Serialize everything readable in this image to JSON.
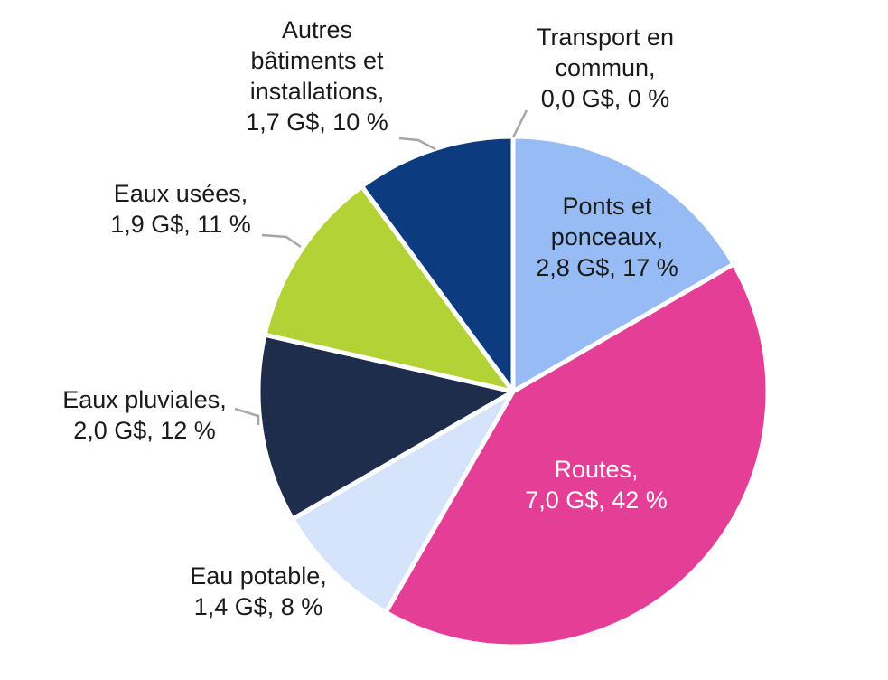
{
  "chart_data": {
    "type": "pie",
    "title": "",
    "unit": "G$",
    "slices": [
      {
        "label": [
          "Transport en",
          "commun,",
          "0,0 G$, 0 %"
        ],
        "value": 0.0,
        "percent": 0,
        "color": "#4a6fb5"
      },
      {
        "label": [
          "Ponts et",
          "ponceaux,",
          "2,8 G$, 17 %"
        ],
        "value": 2.8,
        "percent": 17,
        "color": "#97bcf5"
      },
      {
        "label": [
          "Routes,",
          "7,0 G$, 42 %"
        ],
        "value": 7.0,
        "percent": 42,
        "color": "#e43e97"
      },
      {
        "label": [
          "Eau potable,",
          "1,4 G$, 8 %"
        ],
        "value": 1.4,
        "percent": 8,
        "color": "#d5e4fa"
      },
      {
        "label": [
          "Eaux pluviales,",
          "2,0 G$, 12 %"
        ],
        "value": 2.0,
        "percent": 12,
        "color": "#1e2d4c"
      },
      {
        "label": [
          "Eaux usées,",
          "1,9 G$, 11 %"
        ],
        "value": 1.9,
        "percent": 11,
        "color": "#b3d236"
      },
      {
        "label": [
          "Autres",
          "bâtiments et",
          "installations,",
          "1,7 G$, 10 %"
        ],
        "value": 1.7,
        "percent": 10,
        "color": "#0d3b80"
      }
    ]
  }
}
